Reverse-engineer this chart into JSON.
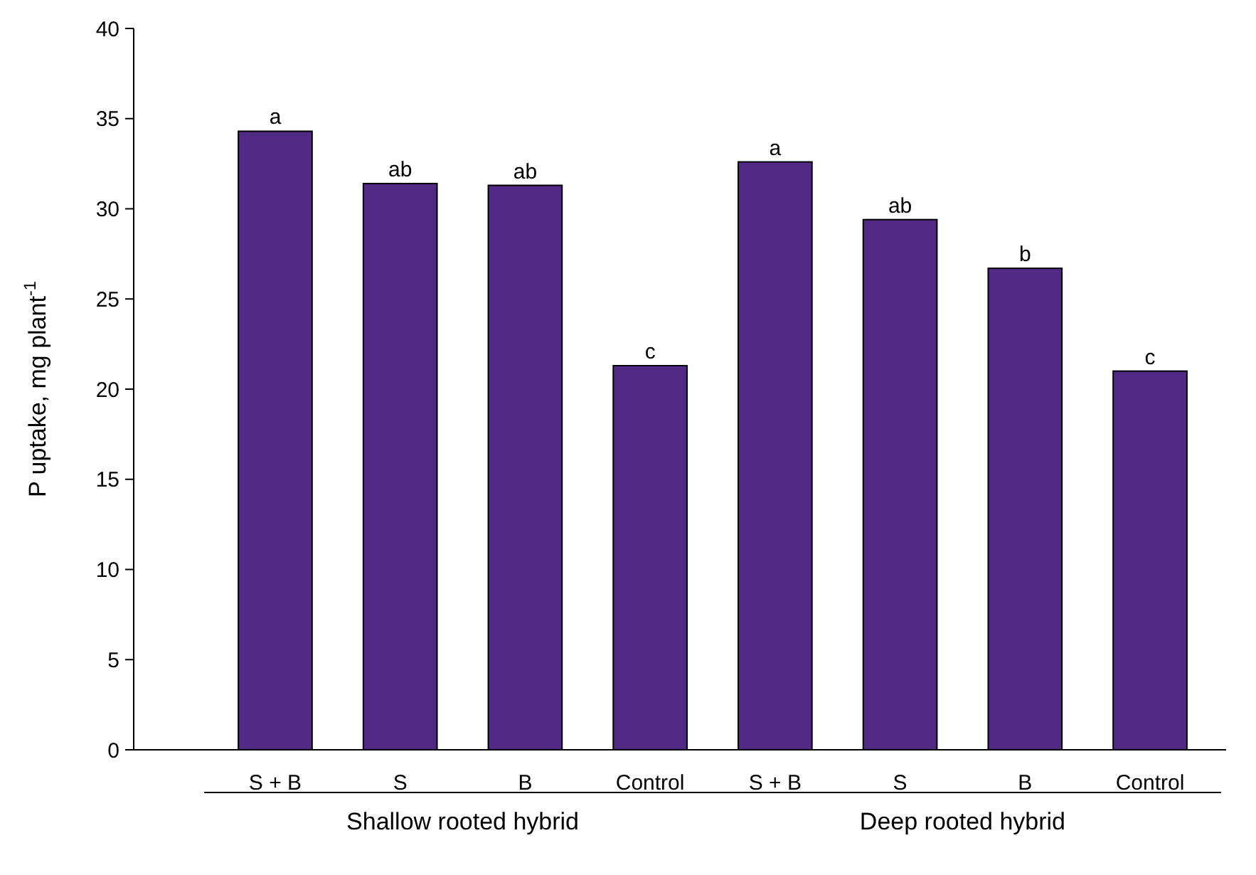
{
  "chart_data": {
    "type": "bar",
    "ylabel": "P uptake, mg plant$^{-1}$",
    "categories": [
      "S + B",
      "S",
      "B",
      "Control",
      "S + B",
      "S",
      "B",
      "Control"
    ],
    "values": [
      34.3,
      31.4,
      31.3,
      21.3,
      32.6,
      29.4,
      26.7,
      21.0
    ],
    "value_labels": [
      "a",
      "ab",
      "ab",
      "c",
      "a",
      "ab",
      "b",
      "c"
    ],
    "color": "#522a86",
    "ylim": [
      0,
      40
    ],
    "yticks": [
      0,
      5,
      10,
      15,
      20,
      25,
      30,
      35,
      40
    ],
    "grid": false,
    "annotations": [
      "Shallow rooted hybrid",
      "Deep rooted hybrid"
    ]
  }
}
